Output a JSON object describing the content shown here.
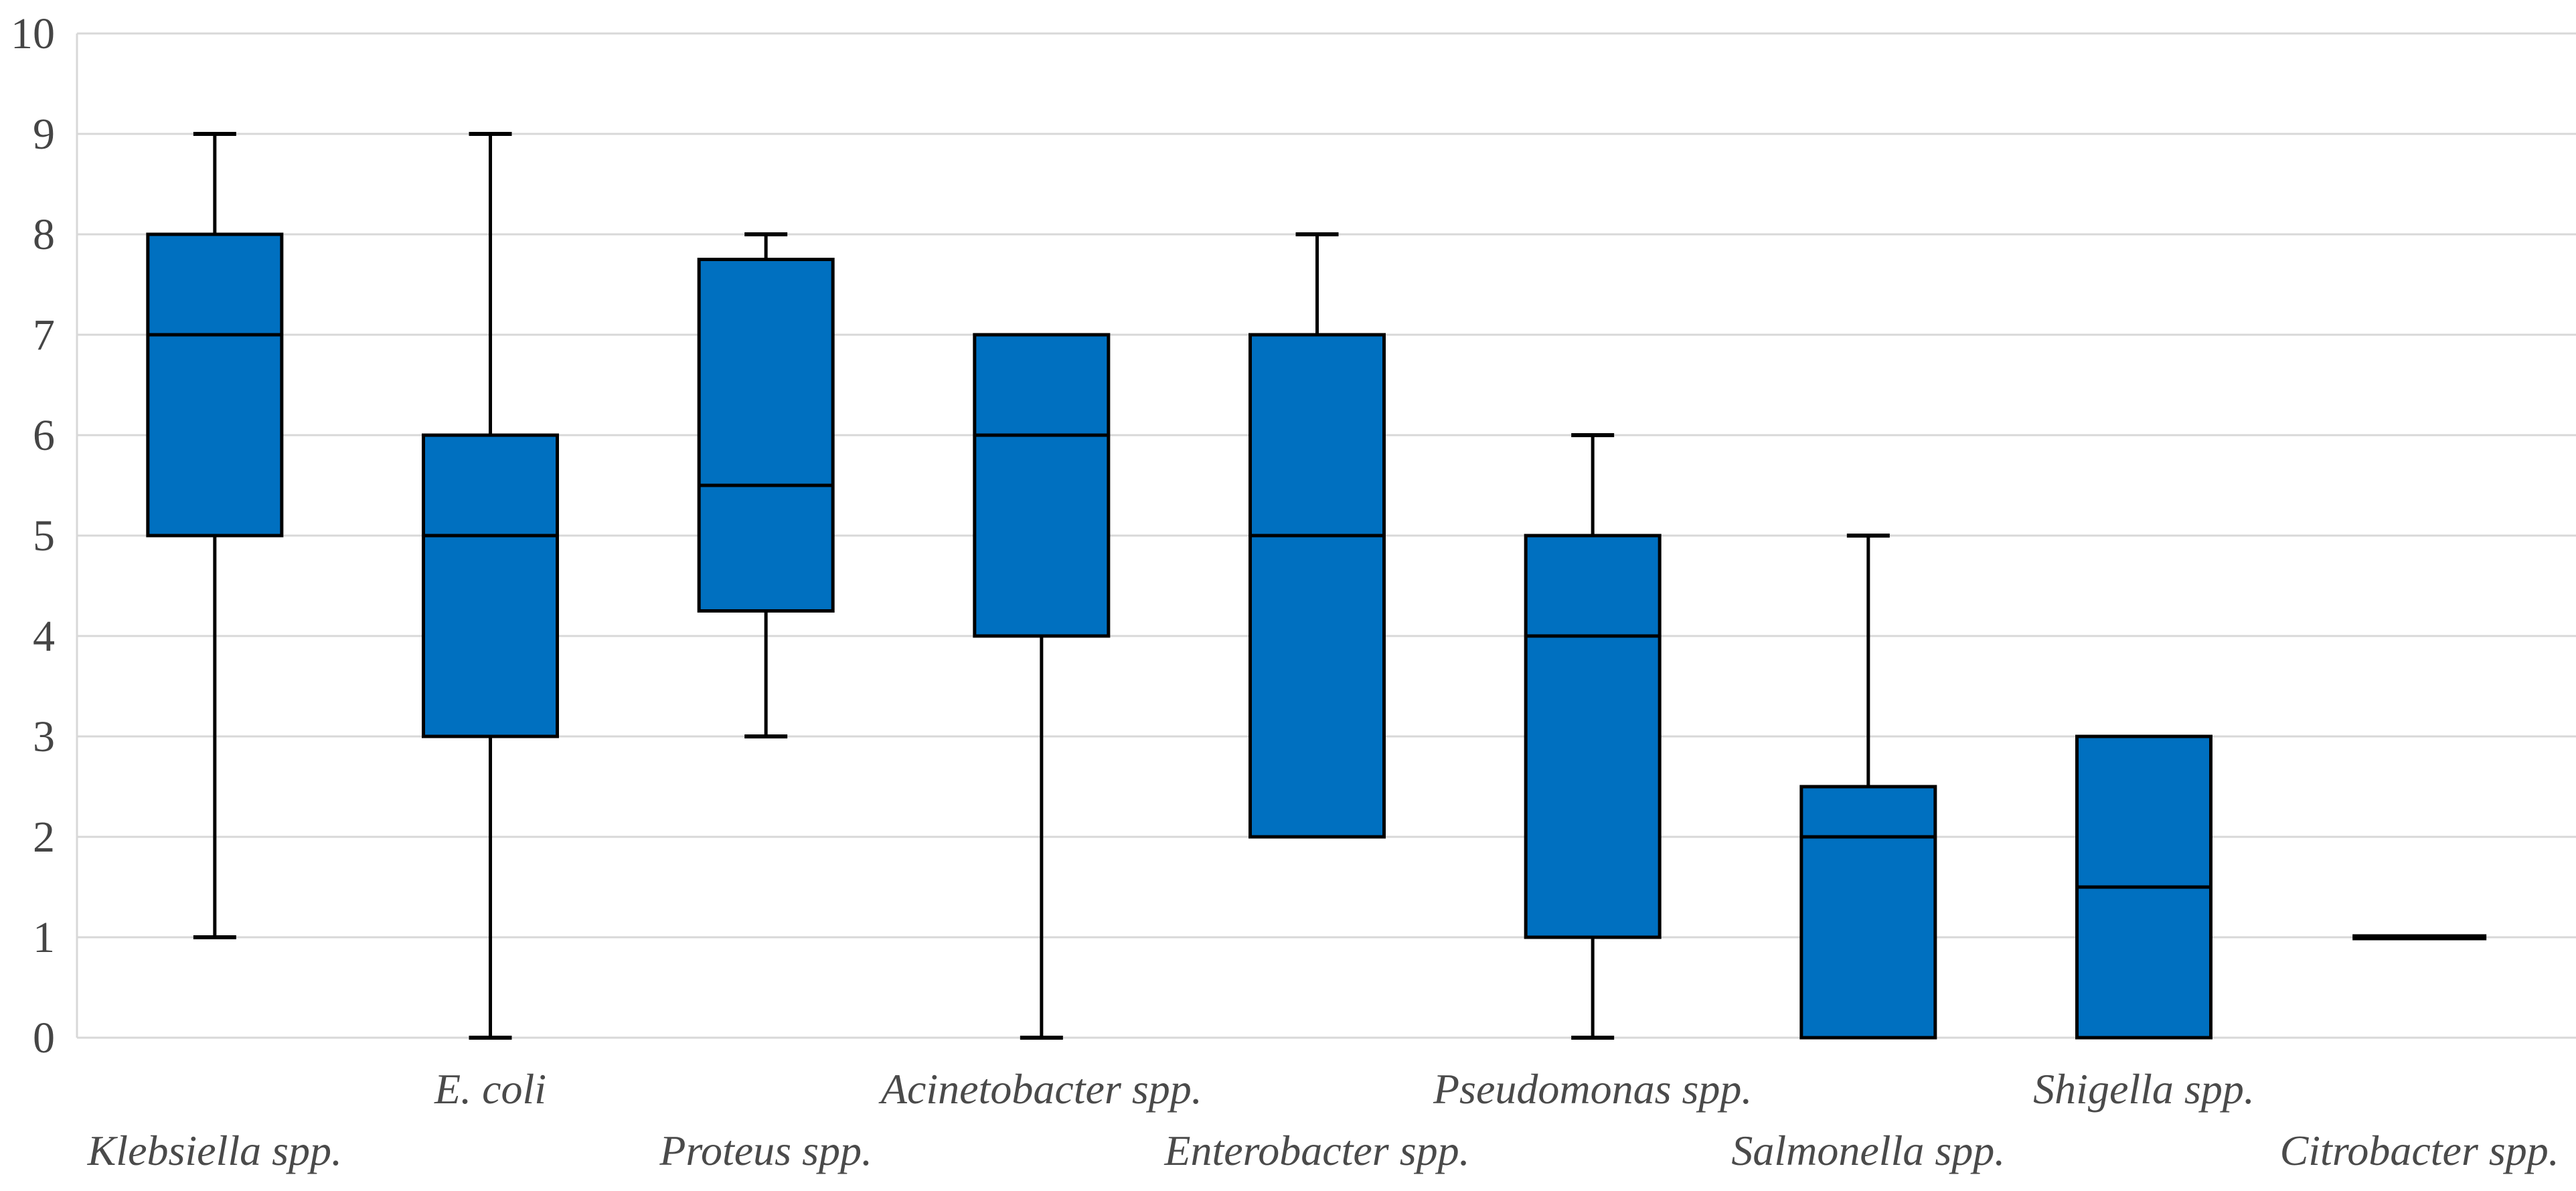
{
  "chart_data": {
    "type": "box",
    "title": "",
    "xlabel": "",
    "ylabel": "",
    "ylim": [
      0,
      10
    ],
    "yticks": [
      0,
      1,
      2,
      3,
      4,
      5,
      6,
      7,
      8,
      9,
      10
    ],
    "grid": true,
    "legend": "none",
    "categories": [
      "Klebsiella spp.",
      "E. coli",
      "Proteus spp.",
      "Acinetobacter spp.",
      "Enterobacter spp.",
      "Pseudomonas spp.",
      "Salmonella spp.",
      "Shigella spp.",
      "Citrobacter spp."
    ],
    "label_row": [
      "lower",
      "upper",
      "lower",
      "upper",
      "lower",
      "upper",
      "lower",
      "upper",
      "lower"
    ],
    "series": [
      {
        "name": "Klebsiella spp.",
        "min": 1,
        "q1": 5,
        "median": 7,
        "q3": 8,
        "max": 9
      },
      {
        "name": "E. coli",
        "min": 0,
        "q1": 3,
        "median": 5,
        "q3": 6,
        "max": 9
      },
      {
        "name": "Proteus spp.",
        "min": 3,
        "q1": 4.25,
        "median": 5.5,
        "q3": 7.75,
        "max": 8
      },
      {
        "name": "Acinetobacter spp.",
        "min": 0,
        "q1": 4,
        "median": 6,
        "q3": 7,
        "max": 7
      },
      {
        "name": "Enterobacter spp.",
        "min": 2,
        "q1": 2,
        "median": 5,
        "q3": 7,
        "max": 8
      },
      {
        "name": "Pseudomonas spp.",
        "min": 0,
        "q1": 1,
        "median": 4,
        "q3": 5,
        "max": 6
      },
      {
        "name": "Salmonella spp.",
        "min": 0,
        "q1": 0,
        "median": 2,
        "q3": 2.5,
        "max": 5
      },
      {
        "name": "Shigella spp.",
        "min": 0,
        "q1": 0,
        "median": 1.5,
        "q3": 3,
        "max": 3
      },
      {
        "name": "Citrobacter spp.",
        "min": 1,
        "q1": 1,
        "median": 1,
        "q3": 1,
        "max": 1
      }
    ]
  },
  "colors": {
    "box_fill": "#0070C0",
    "box_stroke": "#000000",
    "whisker_stroke": "#000000",
    "gridline": "#d8d8d8",
    "axis_line": "#d8d8d8",
    "tick_text": "#454545",
    "category_text": "#4a4a4a",
    "background": "#ffffff"
  }
}
